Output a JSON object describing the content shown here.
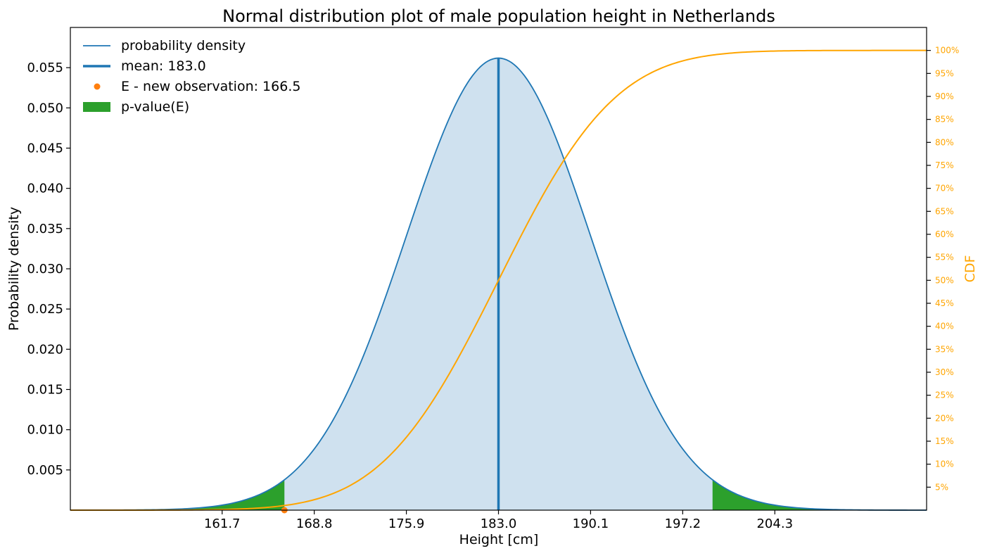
{
  "chart_data": {
    "type": "area",
    "title": "Normal distribution plot of male population height in Netherlands",
    "xlabel": "Height [cm]",
    "ylabel": "Probability density",
    "y2label": "CDF",
    "xlim": [
      150.0,
      216.0
    ],
    "ylim": [
      0.0,
      0.06
    ],
    "y2lim": [
      0.0,
      1.05
    ],
    "x_ticks": [
      161.7,
      168.8,
      175.9,
      183.0,
      190.1,
      197.2,
      204.3
    ],
    "x_tick_labels": [
      "161.7",
      "168.8",
      "175.9",
      "183.0",
      "190.1",
      "197.2",
      "204.3"
    ],
    "y_ticks": [
      0.005,
      0.01,
      0.015,
      0.02,
      0.025,
      0.03,
      0.035,
      0.04,
      0.045,
      0.05,
      0.055
    ],
    "y_tick_labels": [
      "0.005",
      "0.010",
      "0.015",
      "0.020",
      "0.025",
      "0.030",
      "0.035",
      "0.040",
      "0.045",
      "0.050",
      "0.055"
    ],
    "y2_ticks": [
      0.05,
      0.1,
      0.15,
      0.2,
      0.25,
      0.3,
      0.35,
      0.4,
      0.45,
      0.5,
      0.55,
      0.6,
      0.65,
      0.7,
      0.75,
      0.8,
      0.85,
      0.9,
      0.95,
      1.0
    ],
    "y2_tick_labels": [
      "5%",
      "10%",
      "15%",
      "20%",
      "25%",
      "30%",
      "35%",
      "40%",
      "45%",
      "50%",
      "55%",
      "60%",
      "65%",
      "70%",
      "75%",
      "80%",
      "85%",
      "90%",
      "95%",
      "100%"
    ],
    "distribution": {
      "kind": "normal",
      "mean": 183.0,
      "std": 7.1
    },
    "series": [
      {
        "name": "probability density",
        "color": "#1f77b4"
      },
      {
        "name": "mean: 183.0",
        "value": 183.0,
        "color": "#1f77b4"
      },
      {
        "name": "E - new observation: 166.5",
        "value": 166.5,
        "color": "#ff7f0e"
      },
      {
        "name": "p-value(E)",
        "left_tail_upper": 166.5,
        "right_tail_lower": 199.5,
        "color": "#2ca02c"
      },
      {
        "name": "CDF",
        "color": "#ffa500"
      }
    ],
    "legend": {
      "position": "top-left",
      "entries": [
        "probability density",
        "mean: 183.0",
        "E - new observation: 166.5",
        "p-value(E)"
      ]
    },
    "grid": false
  }
}
